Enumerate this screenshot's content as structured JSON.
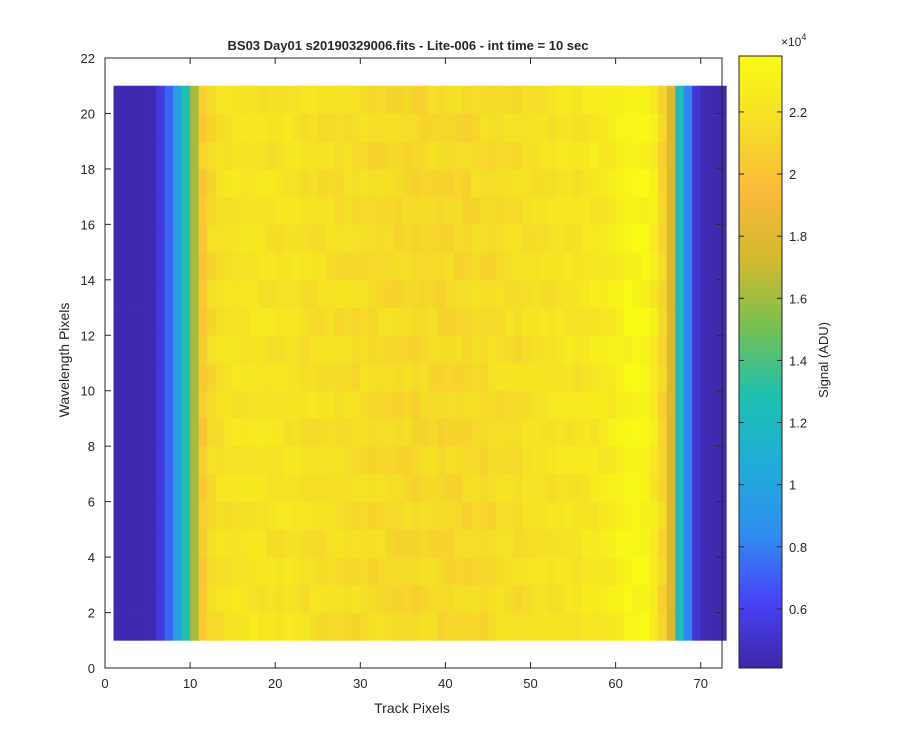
{
  "chart_data": {
    "type": "heatmap",
    "title": "BS03 Day01  s20190329006.fits - Lite-006 - int time = 10 sec",
    "xlabel": "Track Pixels",
    "ylabel": "Wavelength Pixels",
    "xlim": [
      0,
      72.5
    ],
    "ylim": [
      0,
      22
    ],
    "xticks": [
      "0",
      "10",
      "20",
      "30",
      "40",
      "50",
      "60",
      "70"
    ],
    "yticks": [
      "0",
      "2",
      "4",
      "6",
      "8",
      "10",
      "12",
      "14",
      "16",
      "18",
      "20",
      "22"
    ],
    "x_range": [
      1,
      72
    ],
    "y_range": [
      1,
      21
    ],
    "colormap": "parula",
    "colorbar": {
      "label": "Signal (ADU)",
      "exponent": "×10",
      "exponent_power": "4",
      "range": [
        0.41,
        2.38
      ],
      "ticks": [
        "0.6",
        "0.8",
        "1",
        "1.2",
        "1.4",
        "1.6",
        "1.8",
        "2",
        "2.2"
      ],
      "tick_values": [
        0.6,
        0.8,
        1.0,
        1.2,
        1.4,
        1.6,
        1.8,
        2.0,
        2.2
      ],
      "colors": [
        "#3e26a8",
        "#4743f8",
        "#2f8fef",
        "#1fadd9",
        "#1dc0b0",
        "#75c052",
        "#d3b92d",
        "#fbb939",
        "#f5de27",
        "#f9fb15"
      ]
    },
    "column_profile_e4": [
      0.43,
      0.43,
      0.43,
      0.43,
      0.44,
      0.55,
      0.72,
      0.98,
      1.28,
      1.62,
      2.05,
      2.14,
      2.18,
      2.2,
      2.21,
      2.2,
      2.22,
      2.21,
      2.2,
      2.19,
      2.21,
      2.2,
      2.18,
      2.19,
      2.17,
      2.18,
      2.16,
      2.17,
      2.15,
      2.16,
      2.14,
      2.15,
      2.14,
      2.13,
      2.14,
      2.12,
      2.13,
      2.14,
      2.12,
      2.13,
      2.14,
      2.12,
      2.15,
      2.14,
      2.15,
      2.16,
      2.17,
      2.16,
      2.18,
      2.19,
      2.2,
      2.19,
      2.21,
      2.22,
      2.21,
      2.23,
      2.24,
      2.25,
      2.27,
      2.3,
      2.33,
      2.34,
      2.33,
      2.26,
      2.11,
      1.78,
      1.25,
      0.82,
      0.53,
      0.44,
      0.43,
      0.43
    ]
  }
}
